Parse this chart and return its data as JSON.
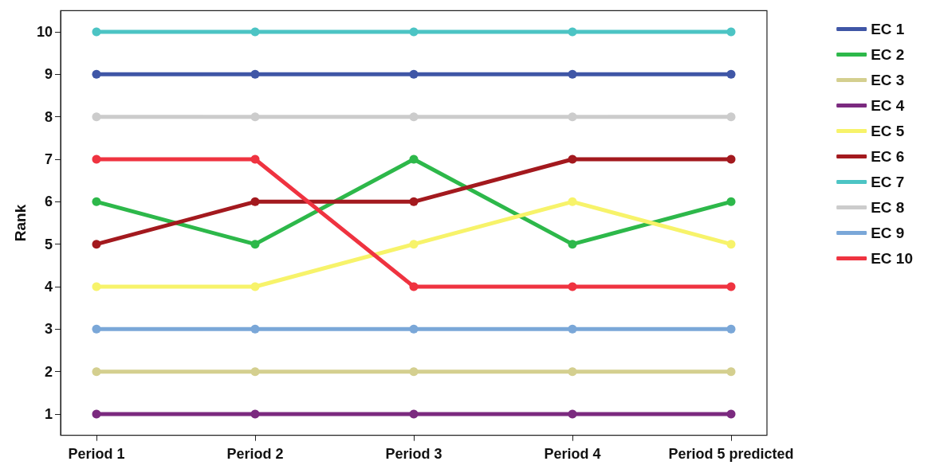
{
  "chart_data": {
    "type": "line",
    "ylabel": "Rank",
    "categories": [
      "Period 1",
      "Period 2",
      "Period 3",
      "Period 4",
      "Period 5 predicted"
    ],
    "ylim": [
      0.5,
      10.5
    ],
    "yticks": [
      1,
      2,
      3,
      4,
      5,
      6,
      7,
      8,
      9,
      10
    ],
    "grid": false,
    "legend": "top right",
    "marker": "circle",
    "line_style": "solid",
    "series": [
      {
        "name": "EC 1",
        "color": "#3f56a6",
        "values": [
          9,
          9,
          9,
          9,
          9
        ]
      },
      {
        "name": "EC 2",
        "color": "#2db84a",
        "values": [
          6,
          5,
          7,
          5,
          6
        ]
      },
      {
        "name": "EC 3",
        "color": "#d4cf8f",
        "values": [
          2,
          2,
          2,
          2,
          2
        ]
      },
      {
        "name": "EC 4",
        "color": "#7b2a7f",
        "values": [
          1,
          1,
          1,
          1,
          1
        ]
      },
      {
        "name": "EC 5",
        "color": "#f7f36a",
        "values": [
          4,
          4,
          5,
          6,
          5
        ]
      },
      {
        "name": "EC 6",
        "color": "#a3191e",
        "values": [
          5,
          6,
          6,
          7,
          7
        ]
      },
      {
        "name": "EC 7",
        "color": "#4cc4c4",
        "values": [
          10,
          10,
          10,
          10,
          10
        ]
      },
      {
        "name": "EC 8",
        "color": "#cccccc",
        "values": [
          8,
          8,
          8,
          8,
          8
        ]
      },
      {
        "name": "EC 9",
        "color": "#7aa7d8",
        "values": [
          3,
          3,
          3,
          3,
          3
        ]
      },
      {
        "name": "EC 10",
        "color": "#ef3340",
        "values": [
          7,
          7,
          4,
          4,
          4
        ]
      }
    ]
  }
}
